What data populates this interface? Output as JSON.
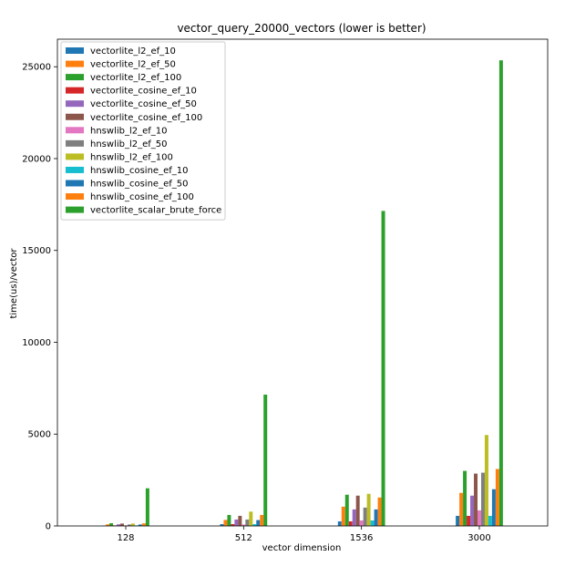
{
  "chart_data": {
    "type": "bar",
    "title": "vector_query_20000_vectors (lower is better)",
    "xlabel": "vector dimension",
    "ylabel": "time(us)/vector",
    "categories": [
      "128",
      "512",
      "1536",
      "3000"
    ],
    "ylim": [
      0,
      26500
    ],
    "yticks": [
      0,
      5000,
      10000,
      15000,
      20000,
      25000
    ],
    "legend_position": "top-left",
    "grid": false,
    "series": [
      {
        "name": "vectorlite_l2_ef_10",
        "color": "#1f77b4",
        "values": [
          20,
          100,
          250,
          550
        ]
      },
      {
        "name": "vectorlite_l2_ef_50",
        "color": "#ff7f0e",
        "values": [
          90,
          330,
          1050,
          1800
        ]
      },
      {
        "name": "vectorlite_l2_ef_100",
        "color": "#2ca02c",
        "values": [
          150,
          600,
          1700,
          3000
        ]
      },
      {
        "name": "vectorlite_cosine_ef_10",
        "color": "#d62728",
        "values": [
          30,
          100,
          250,
          550
        ]
      },
      {
        "name": "vectorlite_cosine_ef_50",
        "color": "#9467bd",
        "values": [
          90,
          350,
          900,
          1650
        ]
      },
      {
        "name": "vectorlite_cosine_ef_100",
        "color": "#8c564b",
        "values": [
          130,
          550,
          1650,
          2850
        ]
      },
      {
        "name": "hnswlib_l2_ef_10",
        "color": "#e377c2",
        "values": [
          30,
          80,
          300,
          850
        ]
      },
      {
        "name": "hnswlib_l2_ef_50",
        "color": "#7f7f7f",
        "values": [
          80,
          350,
          1000,
          2900
        ]
      },
      {
        "name": "hnswlib_l2_ef_100",
        "color": "#bcbd22",
        "values": [
          130,
          780,
          1750,
          4950
        ]
      },
      {
        "name": "hnswlib_cosine_ef_10",
        "color": "#17becf",
        "values": [
          30,
          100,
          300,
          550
        ]
      },
      {
        "name": "hnswlib_cosine_ef_50",
        "color": "#1f77b4",
        "values": [
          80,
          320,
          900,
          2000
        ]
      },
      {
        "name": "hnswlib_cosine_ef_100",
        "color": "#ff7f0e",
        "values": [
          140,
          600,
          1550,
          3100
        ]
      },
      {
        "name": "vectorlite_scalar_brute_force",
        "color": "#2ca02c",
        "values": [
          2050,
          7150,
          17150,
          25350
        ]
      }
    ]
  }
}
